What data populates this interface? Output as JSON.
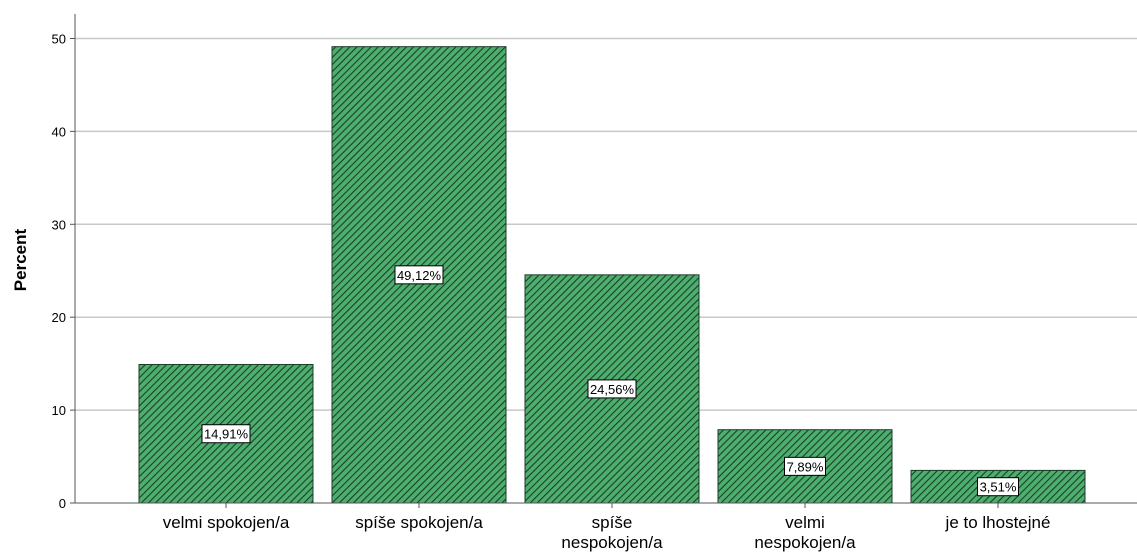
{
  "chart_data": {
    "type": "bar",
    "title": "",
    "xlabel": "",
    "ylabel": "Percent",
    "ylim": [
      0,
      52
    ],
    "yticks": [
      0,
      10,
      20,
      30,
      40,
      50
    ],
    "grid": true,
    "categories": [
      [
        "velmi spokojen/a"
      ],
      [
        "spíše spokojen/a"
      ],
      [
        "spíše",
        "nespokojen/a"
      ],
      [
        "velmi",
        "nespokojen/a"
      ],
      [
        "je to lhostejné"
      ]
    ],
    "values": [
      14.91,
      49.12,
      24.56,
      7.89,
      3.51
    ],
    "data_labels": [
      "14,91%",
      "49,12%",
      "24,56%",
      "7,89%",
      "3,51%"
    ],
    "colors": {
      "bar_fill": "#4caf6e",
      "hatch": "#1d3d29",
      "grid": "#c8c8c8",
      "axis": "#555555"
    }
  }
}
